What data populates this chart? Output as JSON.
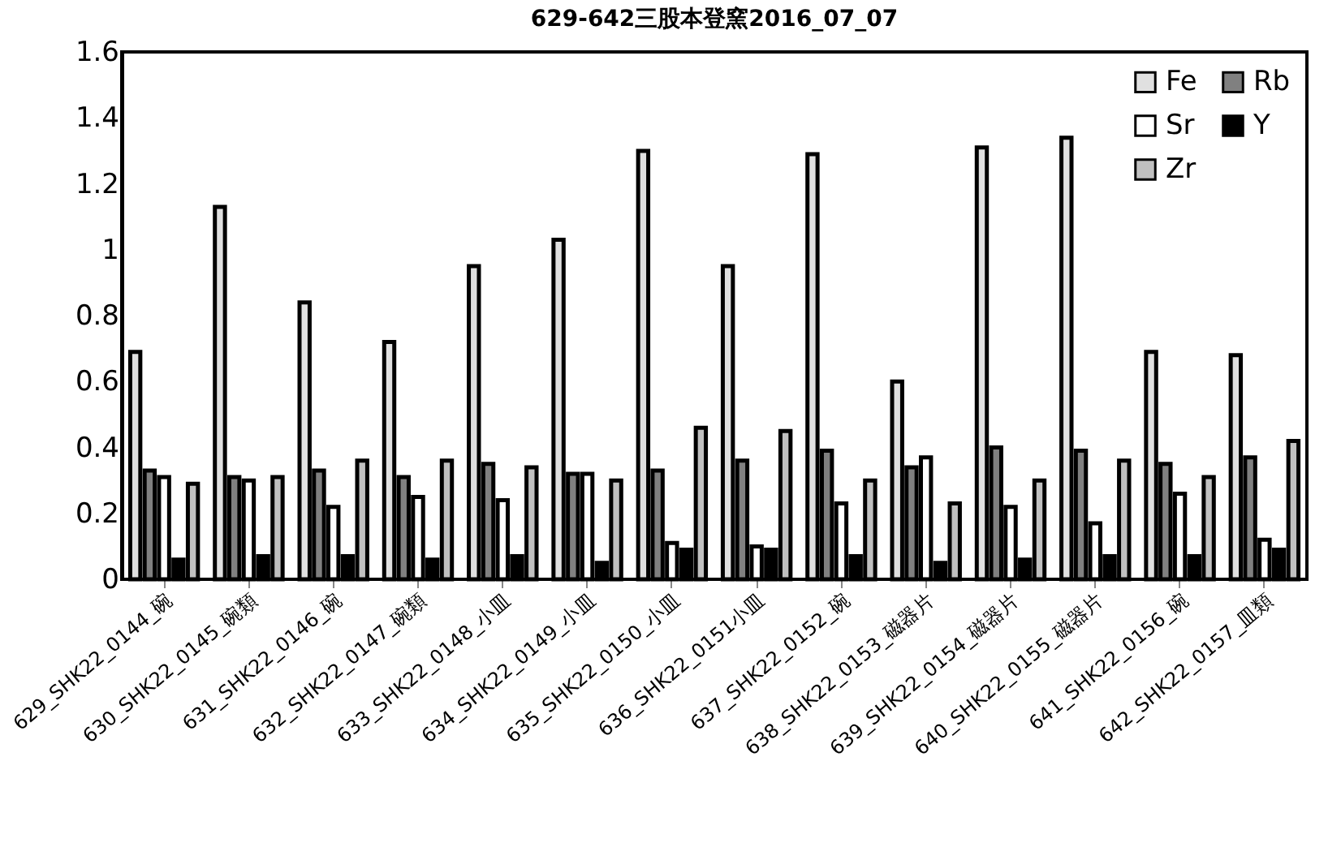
{
  "chart_data": {
    "type": "bar",
    "title": "629-642三股本登窯2016_07_07",
    "categories": [
      "629_SHK22_0144_碗",
      "630_SHK22_0145_碗類",
      "631_SHK22_0146_碗",
      "632_SHK22_0147_碗類",
      "633_SHK22_0148_小皿",
      "634_SHK22_0149_小皿",
      "635_SHK22_0150_小皿",
      "636_SHK22_0151小皿",
      "637_SHK22_0152_碗",
      "638_SHK22_0153_磁器片",
      "639_SHK22_0154_磁器片",
      "640_SHK22_0155_磁器片",
      "641_SHK22_0156_碗",
      "642_SHK22_0157_皿類"
    ],
    "series": [
      {
        "name": "Fe",
        "color": "#e0e0e0",
        "values": [
          0.69,
          1.13,
          0.84,
          0.72,
          0.95,
          1.03,
          1.3,
          0.95,
          1.29,
          0.6,
          1.31,
          1.34,
          0.69,
          0.68
        ]
      },
      {
        "name": "Rb",
        "color": "#808080",
        "values": [
          0.33,
          0.31,
          0.33,
          0.31,
          0.35,
          0.32,
          0.33,
          0.36,
          0.39,
          0.34,
          0.4,
          0.39,
          0.35,
          0.37
        ]
      },
      {
        "name": "Sr",
        "color": "#ffffff",
        "values": [
          0.31,
          0.3,
          0.22,
          0.25,
          0.24,
          0.32,
          0.11,
          0.1,
          0.23,
          0.37,
          0.22,
          0.17,
          0.26,
          0.12
        ]
      },
      {
        "name": "Y",
        "color": "#000000",
        "values": [
          0.06,
          0.07,
          0.07,
          0.06,
          0.07,
          0.05,
          0.09,
          0.09,
          0.07,
          0.05,
          0.06,
          0.07,
          0.07,
          0.09
        ]
      },
      {
        "name": "Zr",
        "color": "#c0c0c0",
        "values": [
          0.29,
          0.31,
          0.36,
          0.36,
          0.34,
          0.3,
          0.46,
          0.45,
          0.3,
          0.23,
          0.3,
          0.36,
          0.31,
          0.42
        ]
      }
    ],
    "ylim": [
      0,
      1.6
    ],
    "yticks": [
      0,
      0.2,
      0.4,
      0.6,
      0.8,
      1,
      1.2,
      1.4,
      1.6
    ],
    "grid": false,
    "legend": "top right"
  }
}
